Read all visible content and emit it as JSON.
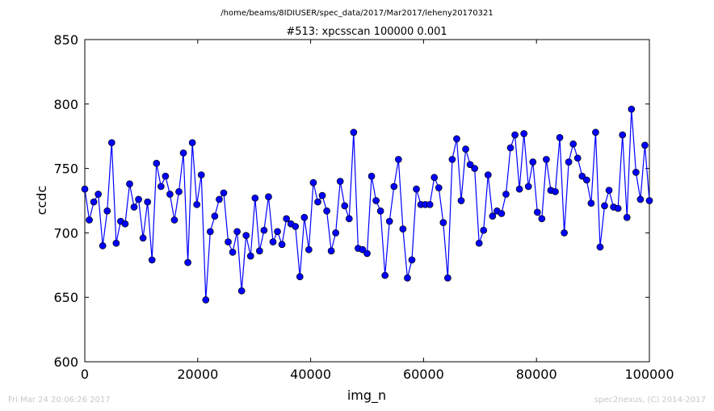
{
  "header": {
    "path": "/home/beams/8IDIUSER/spec_data/2017/Mar2017/leheny20170321"
  },
  "footer": {
    "timestamp": "Fri Mar 24 20:06:26 2017",
    "credit": "spec2nexus, (C) 2014-2017"
  },
  "colors": {
    "series": "#0000ff",
    "marker_edge": "#000000",
    "axes": "#000000",
    "footer_text": "#c8c8c8"
  },
  "chart_data": {
    "type": "line",
    "title": "#513: xpcsscan 100000 0.001",
    "xlabel": "img_n",
    "ylabel": "ccdc",
    "xlim": [
      0,
      100000
    ],
    "ylim": [
      600,
      850
    ],
    "xticks": [
      0,
      20000,
      40000,
      60000,
      80000,
      100000
    ],
    "yticks": [
      600,
      650,
      700,
      750,
      800,
      850
    ],
    "xtick_labels": [
      "0",
      "20000",
      "40000",
      "60000",
      "80000",
      "100000"
    ],
    "ytick_labels": [
      "600",
      "650",
      "700",
      "750",
      "800",
      "850"
    ],
    "grid": false,
    "legend": "none",
    "marker": "circle",
    "series": [
      {
        "x": [
          0,
          794,
          1587,
          2381,
          3175,
          3968,
          4762,
          5556,
          6349,
          7143,
          7937,
          8730,
          9524,
          10317,
          11111,
          11905,
          12698,
          13492,
          14286,
          15079,
          15873,
          16667,
          17460,
          18254,
          19048,
          19841,
          20635,
          21429,
          22222,
          23016,
          23810,
          24603,
          25397,
          26190,
          26984,
          27778,
          28571,
          29365,
          30159,
          30952,
          31746,
          32540,
          33333,
          34127,
          34921,
          35714,
          36508,
          37302,
          38095,
          38889,
          39683,
          40476,
          41270,
          42063,
          42857,
          43651,
          44444,
          45238,
          46032,
          46825,
          47619,
          48413,
          49206,
          50000,
          50794,
          51587,
          52381,
          53175,
          53968,
          54762,
          55556,
          56349,
          57143,
          57937,
          58730,
          59524,
          60317,
          61111,
          61905,
          62698,
          63492,
          64286,
          65079,
          65873,
          66667,
          67460,
          68254,
          69048,
          69841,
          70635,
          71429,
          72222,
          73016,
          73810,
          74603,
          75397,
          76190,
          76984,
          77778,
          78571,
          79365,
          80159,
          80952,
          81746,
          82540,
          83333,
          84127,
          84921,
          85714,
          86508,
          87302,
          88095,
          88889,
          89683,
          90476,
          91270,
          92063,
          92857,
          93651,
          94444,
          95238,
          96032,
          96825,
          97619,
          98413,
          99206,
          100000
        ],
        "y": [
          734,
          710,
          724,
          730,
          690,
          717,
          770,
          692,
          709,
          707,
          738,
          720,
          726,
          696,
          724,
          679,
          754,
          736,
          744,
          730,
          710,
          732,
          762,
          677,
          770,
          722,
          745,
          648,
          701,
          713,
          726,
          731,
          693,
          685,
          701,
          655,
          698,
          682,
          727,
          686,
          702,
          728,
          693,
          701,
          691,
          711,
          707,
          705,
          666,
          712,
          687,
          739,
          724,
          729,
          717,
          686,
          700,
          740,
          721,
          711,
          778,
          688,
          687,
          684,
          744,
          725,
          717,
          667,
          709,
          736,
          757,
          703,
          665,
          679,
          734,
          722,
          722,
          722,
          743,
          735,
          708,
          665,
          757,
          773,
          725,
          765,
          753,
          750,
          692,
          702,
          745,
          713,
          717,
          715,
          730,
          766,
          776,
          734,
          777,
          736,
          755,
          716,
          711,
          757,
          733,
          732,
          774,
          700,
          755,
          769,
          758,
          744,
          741,
          723,
          778,
          689,
          721,
          733,
          720,
          719,
          776,
          712,
          796,
          747,
          726,
          768,
          725
        ],
        "y_tail_note": ""
      }
    ]
  }
}
